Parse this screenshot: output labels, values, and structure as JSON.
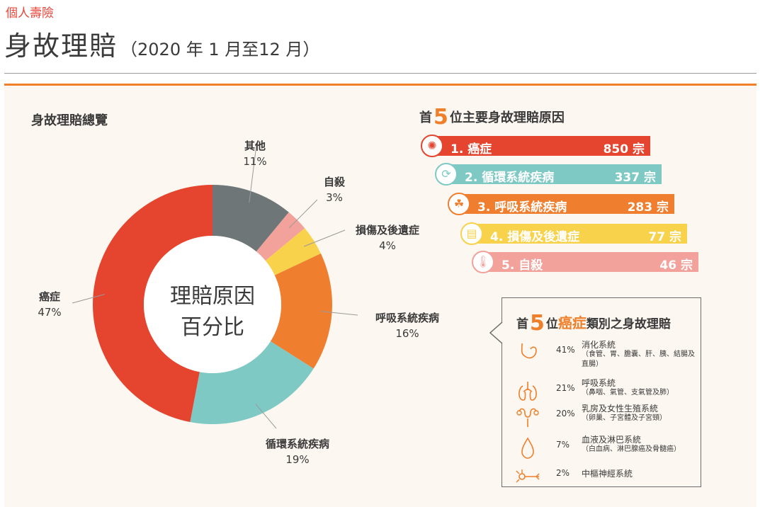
{
  "header": {
    "category": "個人壽險",
    "title": "身故理賠",
    "period": "（2020 年 1 月至12 月）"
  },
  "overview": {
    "title": "身故理賠總覽",
    "center_line1": "理賠原因",
    "center_line2": "百分比"
  },
  "chart_data": [
    {
      "type": "pie",
      "title": "身故理賠總覽",
      "slices": [
        {
          "name": "其他",
          "value": 11,
          "label": "11%",
          "color": "#6e7678"
        },
        {
          "name": "自殺",
          "value": 3,
          "label": "3%",
          "color": "#f2a19b"
        },
        {
          "name": "損傷及後遺症",
          "value": 4,
          "label": "4%",
          "color": "#f7d24a"
        },
        {
          "name": "呼吸系統疾病",
          "value": 16,
          "label": "16%",
          "color": "#ef7e2e"
        },
        {
          "name": "循環系統疾病",
          "value": 19,
          "label": "19%",
          "color": "#7ec9c4"
        },
        {
          "name": "癌症",
          "value": 47,
          "label": "47%",
          "color": "#e5452f"
        }
      ]
    },
    {
      "type": "bar",
      "title_prefix": "首",
      "title_number": "5",
      "title_suffix": "位主要身故理賠原因",
      "categories": [
        "1. 癌症",
        "2. 循環系統疾病",
        "3. 呼吸系統疾病",
        "4. 損傷及後遺症",
        "5. 自殺"
      ],
      "values": [
        850,
        337,
        283,
        77,
        46
      ],
      "value_labels": [
        "850 宗",
        "337 宗",
        "283 宗",
        "77 宗",
        "46 宗"
      ],
      "colors": [
        "#e5452f",
        "#7ec9c4",
        "#ef7e2e",
        "#f7d24a",
        "#f2a19b"
      ],
      "icons": [
        "cancer-cell-icon",
        "heart-circulation-icon",
        "lungs-icon",
        "bandage-icon",
        "thermometer-icon"
      ]
    }
  ],
  "cancer_top5": {
    "title_prefix": "首",
    "title_number": "5",
    "title_mid": "位",
    "title_highlight": "癌症",
    "title_suffix": "類別之身故理賠",
    "items": [
      {
        "pct": "41%",
        "name": "消化系統",
        "detail": "（食管、胃、膽囊、肝、胰、結腸及直腸）",
        "icon": "stomach-icon"
      },
      {
        "pct": "21%",
        "name": "呼吸系統",
        "detail": "（鼻咽、氣管、支氣管及肺）",
        "icon": "lungs-outline-icon"
      },
      {
        "pct": "20%",
        "name": "乳房及女性生殖系統",
        "detail": "（卵巢、子宮體及子宮頸）",
        "icon": "uterus-icon"
      },
      {
        "pct": "7%",
        "name": "血液及淋巴系統",
        "detail": "（白血病、淋巴腺癌及骨髓癌）",
        "icon": "blood-drop-icon"
      },
      {
        "pct": "2%",
        "name": "中樞神經系統",
        "detail": "",
        "icon": "neuron-icon"
      }
    ]
  },
  "colors": {
    "accent": "#f07f2a",
    "brand_red": "#e8463a",
    "panel_bg": "#fcf7f0"
  }
}
